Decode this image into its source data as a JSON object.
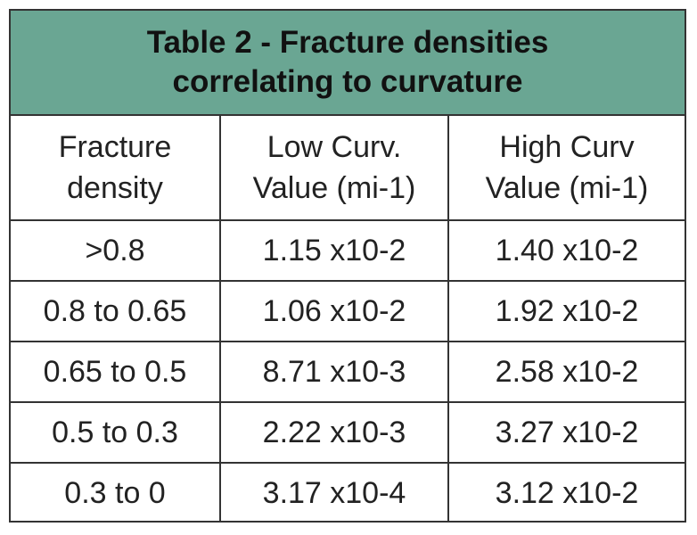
{
  "table": {
    "title": [
      "Table 2 - Fracture densities",
      "correlating to curvature"
    ],
    "header": [
      [
        "Fracture",
        "density"
      ],
      [
        "Low Curv.",
        "Value (mi-1)"
      ],
      [
        "High Curv",
        "Value (mi-1)"
      ]
    ],
    "rows": [
      [
        ">0.8",
        "1.15 x10-2",
        "1.40 x10-2"
      ],
      [
        "0.8 to 0.65",
        "1.06 x10-2",
        "1.92 x10-2"
      ],
      [
        "0.65 to 0.5",
        "8.71 x10-3",
        "2.58 x10-2"
      ],
      [
        "0.5 to 0.3",
        "2.22 x10-3",
        "3.27 x10-2"
      ],
      [
        "0.3 to 0",
        "3.17 x10-4",
        "3.12 x10-2"
      ]
    ]
  }
}
